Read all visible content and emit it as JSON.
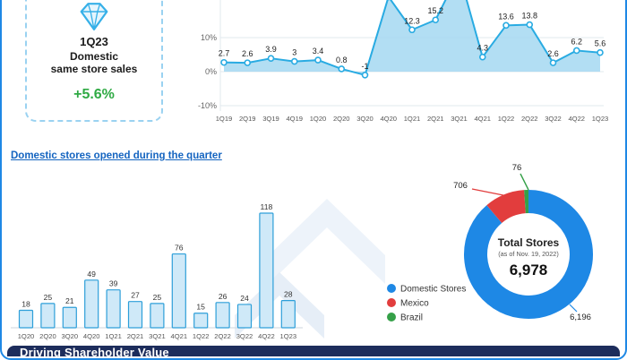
{
  "sss_card": {
    "quarter": "1Q23",
    "line1": "Domestic",
    "line2": "same store sales",
    "value": "+5.6%",
    "value_color": "#2faa44"
  },
  "section_heading": "Domestic stores opened during the quarter",
  "footer": {
    "title": "Driving Shareholder Value"
  },
  "colors": {
    "accent_blue": "#1e88e5",
    "chart_line_blue": "#29abe2",
    "navy_footer": "#1d2d5c",
    "green": "#2faa44",
    "red": "#e23d3d"
  },
  "chart_data": [
    {
      "id": "same_store_sales",
      "type": "area",
      "categories": [
        "1Q19",
        "2Q19",
        "3Q19",
        "4Q19",
        "1Q20",
        "2Q20",
        "3Q20",
        "4Q20",
        "1Q21",
        "2Q21",
        "3Q21",
        "4Q21",
        "1Q22",
        "2Q22",
        "3Q22",
        "4Q22",
        "1Q23"
      ],
      "values": [
        2.7,
        2.6,
        3.9,
        3,
        3.4,
        0.8,
        -1,
        22,
        12.3,
        15.2,
        29,
        4.3,
        13.6,
        13.8,
        2.6,
        6.2,
        5.6
      ],
      "point_labels": [
        "2.7",
        "2.6",
        "3.9",
        "3",
        "3.4",
        "0.8",
        "-1",
        "",
        "12.3",
        "15.2",
        "",
        "4.3",
        "13.6",
        "13.8",
        "2.6",
        "6.2",
        "5.6"
      ],
      "y_ticks": [
        "10%",
        "0%",
        "-10%"
      ],
      "y_tick_values": [
        10,
        0,
        -10
      ],
      "ylim_visible": [
        -13,
        21
      ],
      "line_color": "#29abe2",
      "fill_color": "#a5d8f1"
    },
    {
      "id": "stores_opened",
      "type": "bar",
      "title": "Domestic stores opened during the quarter",
      "categories": [
        "1Q20",
        "2Q20",
        "3Q20",
        "4Q20",
        "1Q21",
        "2Q21",
        "3Q21",
        "4Q21",
        "1Q22",
        "2Q22",
        "3Q22",
        "4Q22",
        "1Q23"
      ],
      "values": [
        18,
        25,
        21,
        49,
        39,
        27,
        25,
        76,
        15,
        26,
        24,
        118,
        28
      ],
      "ylim": [
        0,
        130
      ],
      "bar_fill": "#cfe9f8",
      "bar_stroke": "#2d9fd9"
    },
    {
      "id": "total_stores",
      "type": "pie",
      "center_title": "Total Stores",
      "center_subtitle": "(as of Nov. 19, 2022)",
      "center_value": "6,978",
      "slices": [
        {
          "label": "Domestic Stores",
          "value": 6196,
          "display": "6,196",
          "color": "#1e88e5"
        },
        {
          "label": "Mexico",
          "value": 706,
          "display": "706",
          "color": "#e23d3d"
        },
        {
          "label": "Brazil",
          "value": 76,
          "display": "76",
          "color": "#35a048"
        }
      ],
      "legend_position": "left-bottom"
    }
  ]
}
